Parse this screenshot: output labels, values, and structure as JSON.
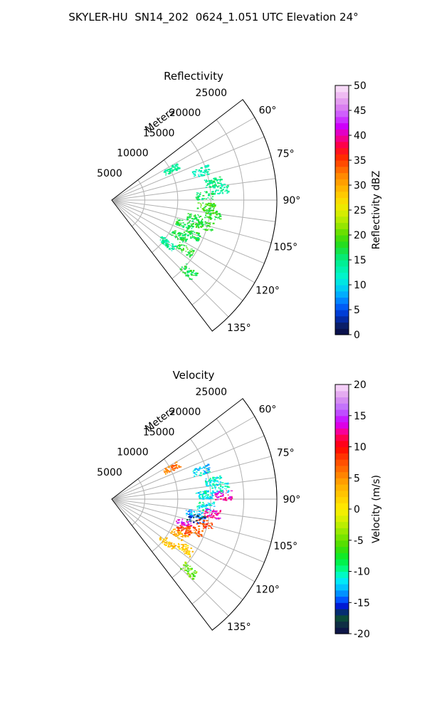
{
  "title": "SKYLER-HU  SN14_202  0624_1.051 UTC Elevation 24°",
  "chart_data": [
    {
      "type": "ppi-sector",
      "title": "Reflectivity",
      "range_label": "Meters",
      "range_ticks": [
        5000,
        10000,
        15000,
        20000,
        25000
      ],
      "range_max": 25000,
      "azimuth_ticks": [
        "60°",
        "75°",
        "90°",
        "105°",
        "120°",
        "135°"
      ],
      "azimuth_range": [
        52.5,
        142.5
      ],
      "colorbar": {
        "label": "Reflectivity dBZ",
        "ticks": [
          0,
          5,
          10,
          15,
          20,
          25,
          30,
          35,
          40,
          45,
          50
        ],
        "range": [
          0,
          50
        ]
      },
      "echo_clusters": [
        {
          "az": 62,
          "range": 10200,
          "value": 14
        },
        {
          "az": 72,
          "range": 14200,
          "value": 13
        },
        {
          "az": 80,
          "range": 15600,
          "value": 15
        },
        {
          "az": 84,
          "range": 16400,
          "value": 14
        },
        {
          "az": 87,
          "range": 14000,
          "value": 16
        },
        {
          "az": 94,
          "range": 14200,
          "value": 19
        },
        {
          "az": 98,
          "range": 15300,
          "value": 18
        },
        {
          "az": 102,
          "range": 12900,
          "value": 17
        },
        {
          "az": 105,
          "range": 14400,
          "value": 18
        },
        {
          "az": 108,
          "range": 11500,
          "value": 17
        },
        {
          "az": 113,
          "range": 13100,
          "value": 17
        },
        {
          "az": 118,
          "range": 11400,
          "value": 17
        },
        {
          "az": 124,
          "range": 13300,
          "value": 18
        },
        {
          "az": 128,
          "range": 10500,
          "value": 14
        },
        {
          "az": 133,
          "range": 15800,
          "value": 17
        }
      ]
    },
    {
      "type": "ppi-sector",
      "title": "Velocity",
      "range_label": "Meters",
      "range_ticks": [
        5000,
        10000,
        15000,
        20000,
        25000
      ],
      "range_max": 25000,
      "azimuth_ticks": [
        "60°",
        "75°",
        "90°",
        "105°",
        "120°",
        "135°"
      ],
      "azimuth_range": [
        52.5,
        142.5
      ],
      "colorbar": {
        "label": "Velocity (m/s)",
        "ticks": [
          -20,
          -15,
          -10,
          -5,
          0,
          5,
          10,
          15,
          20
        ],
        "range": [
          -20,
          20
        ]
      },
      "echo_clusters": [
        {
          "az": 62,
          "range": 10200,
          "value": 6
        },
        {
          "az": 72,
          "range": 14200,
          "value": -12
        },
        {
          "az": 80,
          "range": 15600,
          "value": -11
        },
        {
          "az": 84,
          "range": 16400,
          "value": -11
        },
        {
          "az": 87,
          "range": 14000,
          "value": -11
        },
        {
          "az": 88,
          "range": 16800,
          "value": 13
        },
        {
          "az": 94,
          "range": 14200,
          "value": -11
        },
        {
          "az": 98,
          "range": 15300,
          "value": 13
        },
        {
          "az": 100,
          "range": 12600,
          "value": -13
        },
        {
          "az": 103,
          "range": 13000,
          "value": -16
        },
        {
          "az": 105,
          "range": 14400,
          "value": 8
        },
        {
          "az": 108,
          "range": 11500,
          "value": 14
        },
        {
          "az": 111,
          "range": 13300,
          "value": 7
        },
        {
          "az": 113,
          "range": 11800,
          "value": 8
        },
        {
          "az": 118,
          "range": 11400,
          "value": 4
        },
        {
          "az": 124,
          "range": 13300,
          "value": 2
        },
        {
          "az": 128,
          "range": 10500,
          "value": 3
        },
        {
          "az": 133,
          "range": 15800,
          "value": -5
        }
      ]
    }
  ]
}
